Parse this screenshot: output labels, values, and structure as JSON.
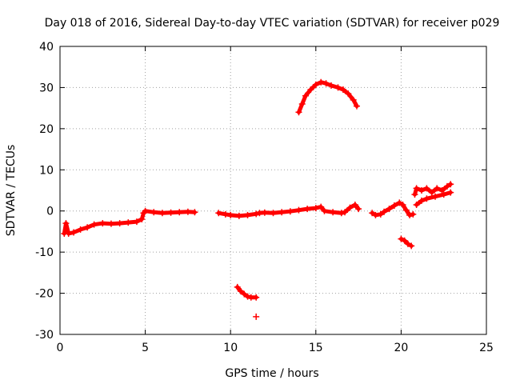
{
  "chart_data": {
    "type": "scatter",
    "title": "Day 018 of 2016, Sidereal Day-to-day VTEC variation (SDTVAR) for receiver p029",
    "xlabel": "GPS time / hours",
    "ylabel": "SDTVAR / TECUs",
    "xlim": [
      0,
      25
    ],
    "ylim": [
      -30,
      40
    ],
    "xticks": [
      0,
      5,
      10,
      15,
      20,
      25
    ],
    "yticks": [
      -30,
      -20,
      -10,
      0,
      10,
      20,
      30,
      40
    ],
    "grid": true,
    "marker": "+",
    "series": [
      {
        "name": "SDTVAR",
        "color": "#ff0000",
        "segments": [
          [
            [
              0.25,
              -5.5
            ],
            [
              0.35,
              -3.0
            ],
            [
              0.5,
              -5.5
            ],
            [
              0.8,
              -5.2
            ],
            [
              1.2,
              -4.5
            ],
            [
              1.6,
              -4.0
            ],
            [
              2.0,
              -3.3
            ],
            [
              2.5,
              -3.0
            ],
            [
              3.0,
              -3.1
            ],
            [
              3.5,
              -3.0
            ],
            [
              4.0,
              -2.8
            ],
            [
              4.5,
              -2.6
            ],
            [
              4.8,
              -2.0
            ],
            [
              4.9,
              -0.5
            ],
            [
              5.0,
              0.0
            ],
            [
              5.5,
              -0.3
            ],
            [
              6.0,
              -0.5
            ],
            [
              6.5,
              -0.4
            ],
            [
              7.0,
              -0.3
            ],
            [
              7.5,
              -0.2
            ],
            [
              7.9,
              -0.3
            ]
          ],
          [
            [
              9.3,
              -0.5
            ],
            [
              9.7,
              -0.8
            ],
            [
              10.0,
              -1.0
            ],
            [
              10.5,
              -1.2
            ],
            [
              11.0,
              -1.0
            ],
            [
              11.5,
              -0.7
            ],
            [
              11.7,
              -0.5
            ],
            [
              12.0,
              -0.4
            ],
            [
              12.5,
              -0.5
            ],
            [
              13.0,
              -0.3
            ],
            [
              13.5,
              -0.1
            ],
            [
              14.0,
              0.2
            ],
            [
              14.5,
              0.5
            ],
            [
              15.0,
              0.7
            ],
            [
              15.3,
              1.0
            ],
            [
              15.5,
              0.0
            ],
            [
              16.0,
              -0.3
            ],
            [
              16.5,
              -0.5
            ],
            [
              16.7,
              -0.3
            ],
            [
              17.0,
              0.8
            ],
            [
              17.3,
              1.5
            ],
            [
              17.5,
              0.5
            ]
          ],
          [
            [
              18.3,
              -0.5
            ],
            [
              18.5,
              -1.0
            ],
            [
              18.8,
              -0.8
            ],
            [
              19.0,
              -0.2
            ],
            [
              19.3,
              0.5
            ],
            [
              19.6,
              1.3
            ],
            [
              19.9,
              2.0
            ],
            [
              20.1,
              1.5
            ],
            [
              20.3,
              0.2
            ],
            [
              20.5,
              -1.0
            ],
            [
              20.7,
              -0.8
            ]
          ],
          [
            [
              20.8,
              4.0
            ],
            [
              20.9,
              5.5
            ],
            [
              21.2,
              5.0
            ],
            [
              21.5,
              5.5
            ],
            [
              21.8,
              4.5
            ],
            [
              22.1,
              5.5
            ],
            [
              22.4,
              5.0
            ],
            [
              22.7,
              6.0
            ],
            [
              22.9,
              6.5
            ]
          ],
          [
            [
              20.9,
              1.5
            ],
            [
              21.2,
              2.5
            ],
            [
              21.5,
              3.0
            ],
            [
              22.0,
              3.5
            ],
            [
              22.5,
              4.0
            ],
            [
              22.9,
              4.5
            ]
          ],
          [
            [
              20.0,
              -6.8
            ],
            [
              20.2,
              -7.2
            ],
            [
              20.4,
              -8.0
            ],
            [
              20.6,
              -8.5
            ]
          ],
          [
            [
              14.0,
              24.0
            ],
            [
              14.2,
              26.0
            ],
            [
              14.4,
              28.0
            ],
            [
              14.7,
              29.5
            ],
            [
              15.0,
              30.7
            ],
            [
              15.3,
              31.3
            ],
            [
              15.6,
              31.0
            ],
            [
              15.9,
              30.5
            ],
            [
              16.3,
              30.0
            ],
            [
              16.6,
              29.5
            ],
            [
              16.9,
              28.5
            ],
            [
              17.2,
              27.0
            ],
            [
              17.4,
              25.5
            ]
          ],
          [
            [
              10.4,
              -18.5
            ],
            [
              10.6,
              -19.5
            ],
            [
              10.8,
              -20.2
            ],
            [
              11.0,
              -20.8
            ],
            [
              11.2,
              -21.0
            ],
            [
              11.5,
              -21.0
            ]
          ],
          [
            [
              11.5,
              -25.7
            ]
          ]
        ]
      }
    ]
  }
}
